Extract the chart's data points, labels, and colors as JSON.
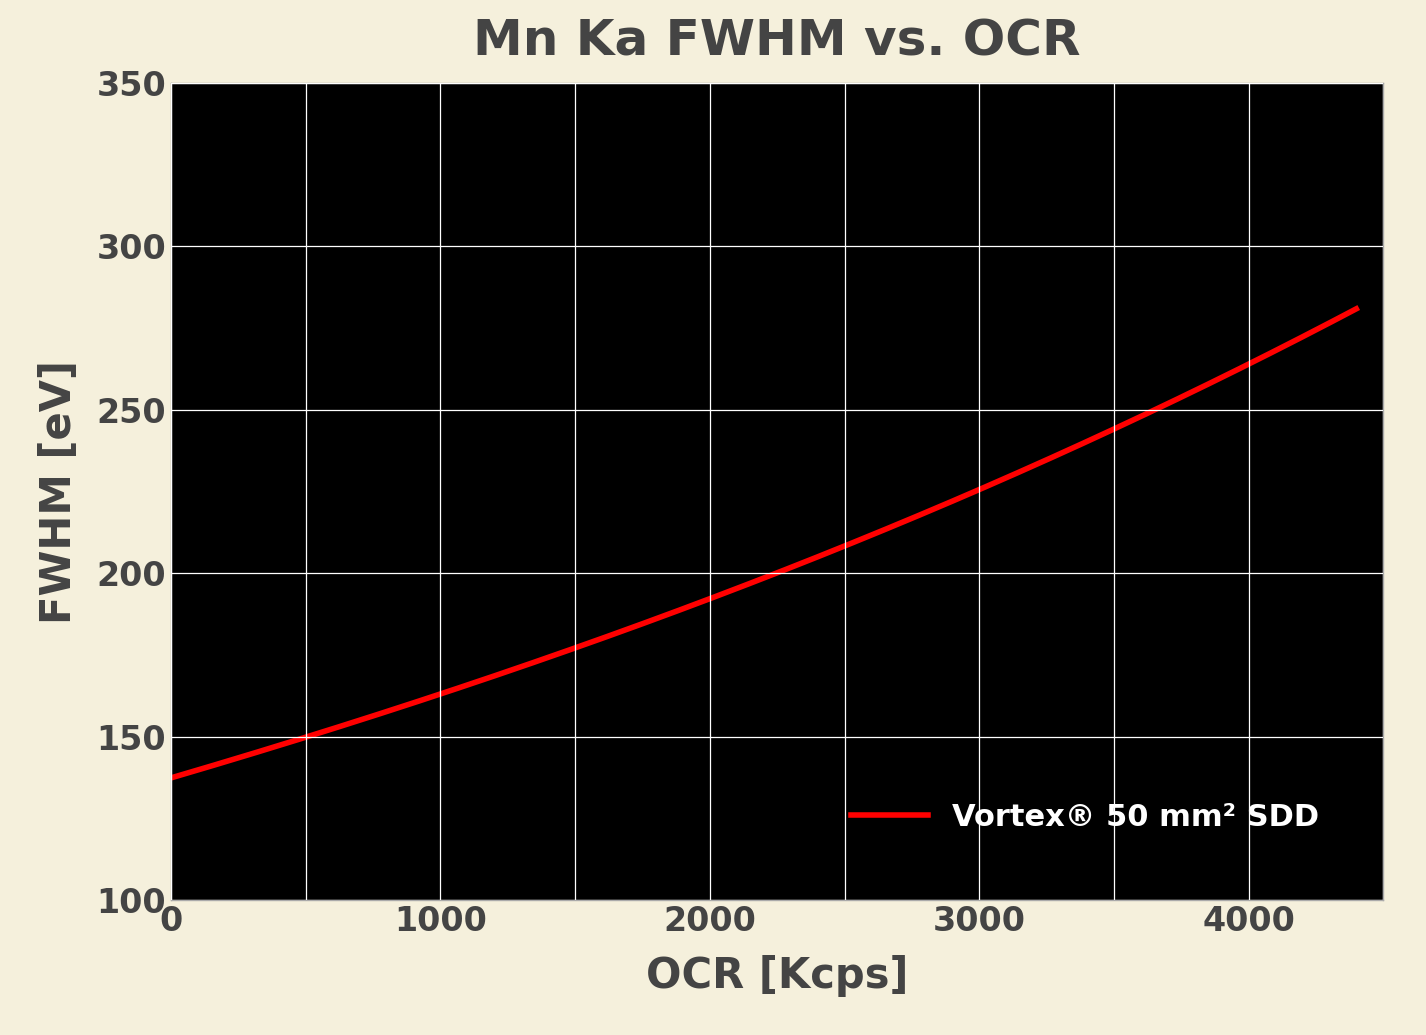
{
  "title": "Mn Ka FWHM vs. OCR",
  "xlabel": "OCR [Kcps]",
  "ylabel": "FWHM [eV]",
  "background_color": "#f5f0dc",
  "plot_bg_color": "#000000",
  "grid_color": "#ffffff",
  "line_color": "#ff0000",
  "line_width": 4.0,
  "xlim": [
    0,
    4500
  ],
  "ylim": [
    100,
    350
  ],
  "xtick_positions": [
    0,
    500,
    1000,
    1500,
    2000,
    2500,
    3000,
    3500,
    4000,
    4500
  ],
  "xtick_labels": [
    "0",
    "",
    "1000",
    "",
    "2000",
    "",
    "3000",
    "",
    "4000",
    ""
  ],
  "ytick_positions": [
    100,
    150,
    200,
    250,
    300,
    350
  ],
  "ytick_labels": [
    "100",
    "150",
    "200",
    "250",
    "300",
    "350"
  ],
  "legend_label": "Vortex® 50 mm² SDD",
  "title_fontsize": 36,
  "axis_label_fontsize": 30,
  "tick_fontsize": 24,
  "legend_fontsize": 22,
  "key_x": [
    0,
    500,
    1000,
    1500,
    2000,
    2500,
    3000,
    3500,
    4000,
    4400
  ],
  "key_y": [
    137,
    150,
    165,
    176,
    192,
    208,
    225,
    245,
    265,
    280
  ]
}
